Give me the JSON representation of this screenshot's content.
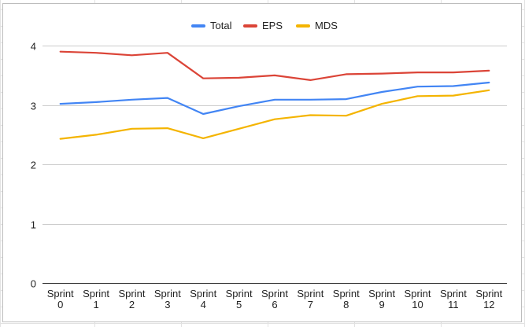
{
  "chart_data": {
    "type": "line",
    "title": "",
    "xlabel": "",
    "ylabel": "",
    "categories": [
      [
        "Sprint",
        "0"
      ],
      [
        "Sprint",
        "1"
      ],
      [
        "Sprint",
        "2"
      ],
      [
        "Sprint",
        "3"
      ],
      [
        "Sprint",
        "4"
      ],
      [
        "Sprint",
        "5"
      ],
      [
        "Sprint",
        "6"
      ],
      [
        "Sprint",
        "7"
      ],
      [
        "Sprint",
        "8"
      ],
      [
        "Sprint",
        "9"
      ],
      [
        "Sprint",
        "10"
      ],
      [
        "Sprint",
        "11"
      ],
      [
        "Sprint",
        "12"
      ]
    ],
    "ylim": [
      0,
      4.4
    ],
    "yticks": [
      0,
      1,
      2,
      3,
      4
    ],
    "grid": true,
    "legend_position": "top-center",
    "series": [
      {
        "name": "Total",
        "color": "#4285f4",
        "values": [
          3.02,
          3.05,
          3.09,
          3.12,
          2.85,
          2.98,
          3.09,
          3.09,
          3.1,
          3.22,
          3.31,
          3.32,
          3.38
        ]
      },
      {
        "name": "EPS",
        "color": "#db4437",
        "values": [
          3.9,
          3.88,
          3.84,
          3.88,
          3.45,
          3.46,
          3.5,
          3.42,
          3.52,
          3.53,
          3.55,
          3.55,
          3.58
        ]
      },
      {
        "name": "MDS",
        "color": "#f4b400",
        "values": [
          2.43,
          2.5,
          2.6,
          2.61,
          2.44,
          2.6,
          2.76,
          2.83,
          2.82,
          3.02,
          3.15,
          3.16,
          3.25
        ]
      }
    ]
  }
}
